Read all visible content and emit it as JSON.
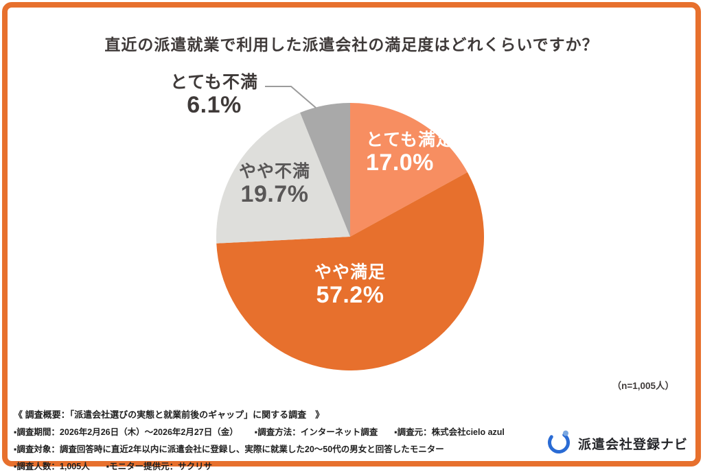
{
  "title": "直近の派遣就業で利用した派遣会社の満足度はどれくらいですか？",
  "chart_data": {
    "type": "pie",
    "title": "直近の派遣就業で利用した派遣会社の満足度はどれくらいですか？",
    "n_note": "（n=1,005人）",
    "start_angle_deg": 0,
    "direction": "clockwise",
    "legend_position": "on-chart",
    "slices": [
      {
        "label": "とても満足",
        "value": 17.0,
        "display": "17.0%",
        "color": "#F78E61"
      },
      {
        "label": "やや満足",
        "value": 57.2,
        "display": "57.2%",
        "color": "#E7702D"
      },
      {
        "label": "やや不満",
        "value": 19.7,
        "display": "19.7%",
        "color": "#DEDEDB"
      },
      {
        "label": "とても不満",
        "value": 6.1,
        "display": "6.1%",
        "color": "#A9A9A9"
      }
    ]
  },
  "colors": {
    "frame_border": "#E7702D",
    "title_text": "#3F3A39",
    "logo_blue": "#2A6BD4"
  },
  "footer": {
    "heading": "《 調査概要：「派遣会社選びの実態と就業前後のギャップ」に関する調査　》",
    "rows": [
      [
        "▪調査期間：2026年2月26日（木）〜2026年2月27日（金）",
        "▪調査方法：インターネット調査",
        "▪調査元：株式会社cielo azul"
      ],
      [
        "▪調査対象：調査回答時に直近2年以内に派遣会社に登録し、実際に就業した20〜50代の男女と回答したモニター"
      ],
      [
        "▪調査人数：1,005人",
        "▪モニター提供元：サクリサ"
      ]
    ]
  },
  "logo": {
    "text": "派遣会社登録ナビ"
  }
}
